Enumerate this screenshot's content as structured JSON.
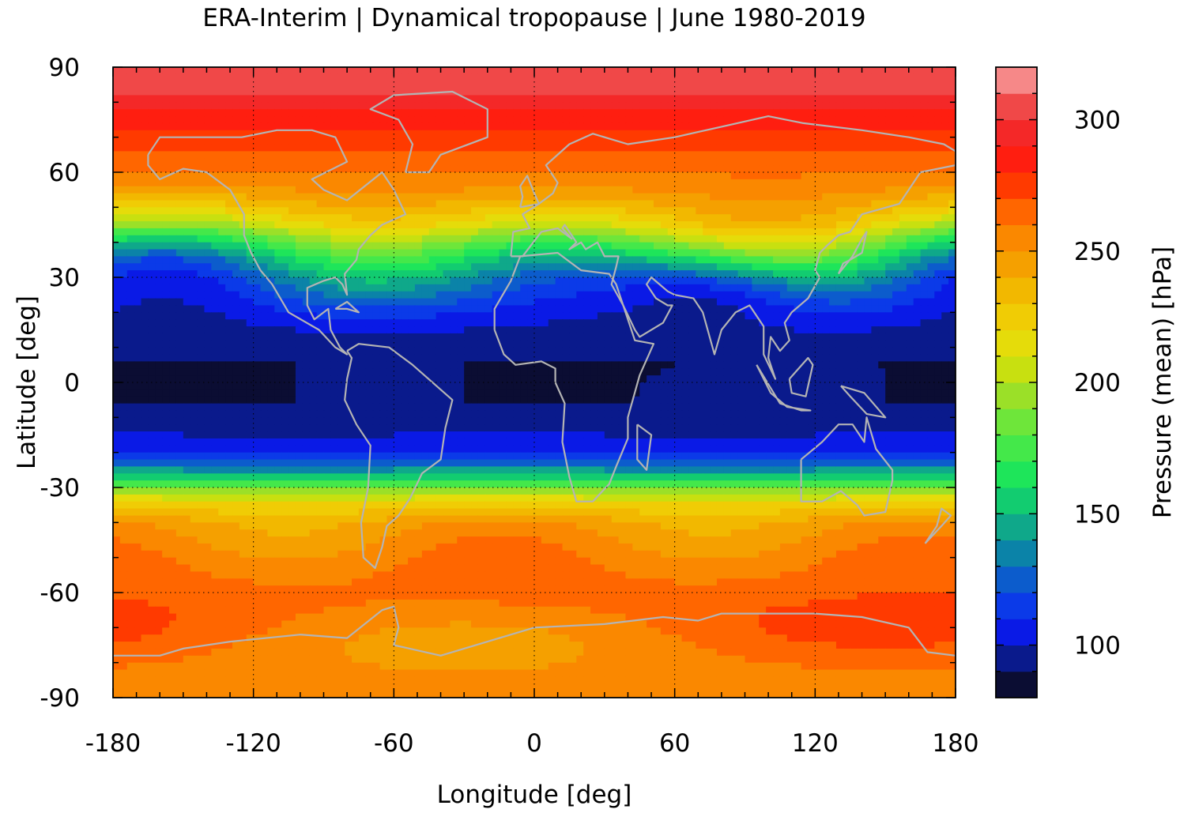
{
  "chart_data": {
    "type": "heatmap",
    "title": "ERA-Interim | Dynamical tropopause | June 1980-2019",
    "xlabel": "Longitude [deg]",
    "ylabel": "Latitude [deg]",
    "xlim": [
      -180,
      180
    ],
    "ylim": [
      -90,
      90
    ],
    "xticks": [
      -180,
      -120,
      -60,
      0,
      60,
      120,
      180
    ],
    "yticks": [
      90,
      60,
      30,
      0,
      -30,
      -60,
      -90
    ],
    "grid": true,
    "colorbar": {
      "label": "Pressure (mean) [hPa]",
      "range": [
        80,
        320
      ],
      "ticks": [
        100,
        150,
        200,
        250,
        300
      ],
      "levels": [
        80,
        90,
        100,
        110,
        120,
        130,
        140,
        150,
        160,
        170,
        180,
        190,
        200,
        210,
        220,
        230,
        240,
        250,
        260,
        270,
        280,
        290,
        300,
        310,
        320
      ],
      "colors": [
        "#0b0d33",
        "#0a1a8c",
        "#0a1ae6",
        "#0b3ae8",
        "#0c5ccc",
        "#0b83a8",
        "#0fa88a",
        "#12cc70",
        "#1ee55a",
        "#44e84a",
        "#6ee63a",
        "#9be028",
        "#c8e010",
        "#e5dc0a",
        "#f0cc05",
        "#f2b800",
        "#f5a000",
        "#fa8800",
        "#ff6600",
        "#ff3a00",
        "#ff1e10",
        "#f42828",
        "#f04848",
        "#f68888",
        "#ffcaca"
      ]
    },
    "zonal_mean_pressure_hpa": {
      "latitude": [
        90,
        85,
        80,
        75,
        70,
        65,
        60,
        55,
        50,
        45,
        40,
        35,
        30,
        25,
        20,
        15,
        10,
        5,
        0,
        -5,
        -10,
        -15,
        -20,
        -25,
        -30,
        -35,
        -40,
        -45,
        -50,
        -55,
        -60,
        -65,
        -70,
        -75,
        -80,
        -85,
        -90
      ],
      "pressure": [
        310,
        305,
        295,
        285,
        275,
        268,
        260,
        250,
        235,
        215,
        185,
        160,
        140,
        125,
        110,
        100,
        92,
        90,
        90,
        90,
        92,
        100,
        110,
        140,
        185,
        225,
        245,
        252,
        258,
        262,
        265,
        265,
        262,
        258,
        255,
        255,
        255
      ]
    }
  }
}
